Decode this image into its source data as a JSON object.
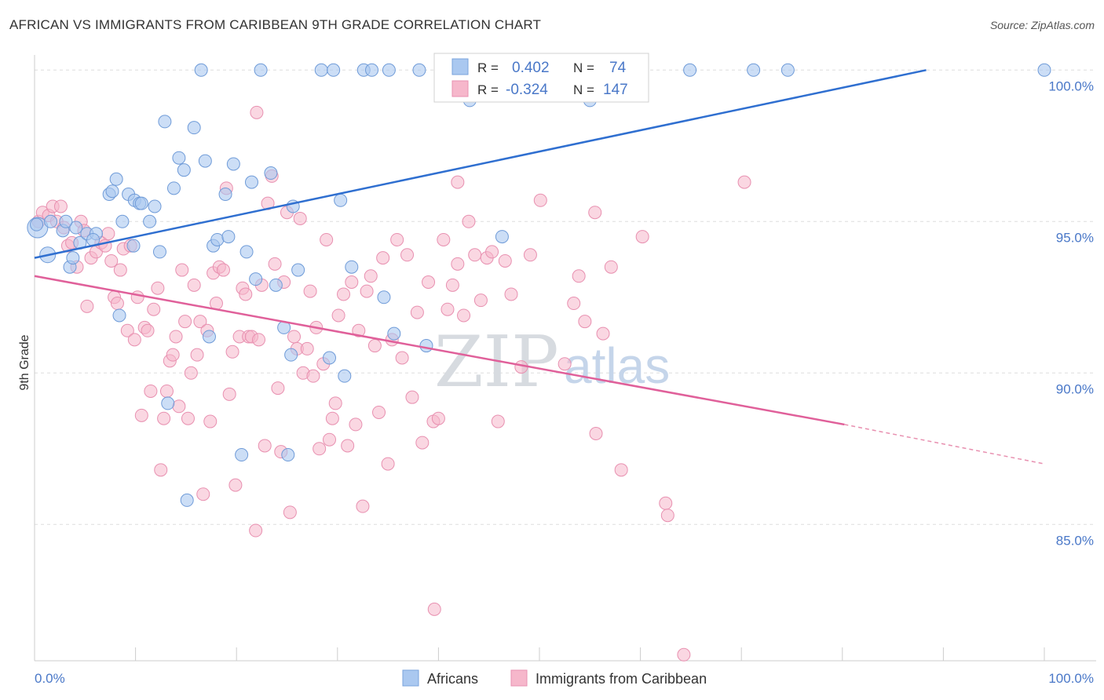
{
  "title": "AFRICAN VS IMMIGRANTS FROM CARIBBEAN 9TH GRADE CORRELATION CHART",
  "source": "Source: ZipAtlas.com",
  "watermark": {
    "zip": "ZIP",
    "atlas": "atlas"
  },
  "colors": {
    "africans": "#4a7fd4",
    "caribbean": "#e86a9c",
    "africans_fill": "#aac8f0",
    "caribbean_fill": "#f6b7cb",
    "axis_text": "#4a78c8"
  },
  "legend": {
    "rows": [
      {
        "r_label": "R =",
        "r_value": "0.402",
        "n_label": "N =",
        "n_value": "74"
      },
      {
        "r_label": "R =",
        "r_value": "-0.324",
        "n_label": "N =",
        "n_value": "147"
      }
    ]
  },
  "bottom_legend": [
    "Africans",
    "Immigrants from Caribbean"
  ],
  "chart_data": {
    "type": "scatter",
    "xlabel": "",
    "ylabel": "9th Grade",
    "xlim": [
      0,
      100
    ],
    "ylim": [
      80.5,
      100.5
    ],
    "x_tick_labels": [
      "0.0%",
      "100.0%"
    ],
    "y_ticks": [
      85,
      90,
      95,
      100
    ],
    "y_tick_labels": [
      "85.0%",
      "90.0%",
      "95.0%",
      "100.0%"
    ],
    "grid": true,
    "series": [
      {
        "name": "Africans",
        "color": "#4a7fd4",
        "trend": {
          "x": [
            0,
            88.3
          ],
          "y": [
            93.8,
            100
          ]
        },
        "points": [
          [
            0.3,
            94.8
          ],
          [
            1.3,
            93.9
          ],
          [
            1.6,
            95
          ],
          [
            2.8,
            94.7
          ],
          [
            3.5,
            93.5
          ],
          [
            3.8,
            93.8
          ],
          [
            4.1,
            94.8
          ],
          [
            4.5,
            94.3
          ],
          [
            5.2,
            94.6
          ],
          [
            6.1,
            94.6
          ],
          [
            7.4,
            95.9
          ],
          [
            7.7,
            96
          ],
          [
            8.1,
            96.4
          ],
          [
            8.4,
            91.9
          ],
          [
            8.7,
            95
          ],
          [
            9.3,
            95.9
          ],
          [
            9.8,
            94.2
          ],
          [
            9.9,
            95.7
          ],
          [
            10.4,
            95.6
          ],
          [
            10.6,
            95.6
          ],
          [
            11.4,
            95
          ],
          [
            11.9,
            95.5
          ],
          [
            12.4,
            94
          ],
          [
            12.9,
            98.3
          ],
          [
            13.2,
            89
          ],
          [
            13.8,
            96.1
          ],
          [
            14.3,
            97.1
          ],
          [
            14.8,
            96.7
          ],
          [
            15.1,
            85.8
          ],
          [
            15.8,
            98.1
          ],
          [
            16.5,
            100
          ],
          [
            16.9,
            97
          ],
          [
            17.3,
            91.2
          ],
          [
            17.7,
            94.2
          ],
          [
            18.1,
            94.4
          ],
          [
            18.9,
            95.9
          ],
          [
            19.2,
            94.5
          ],
          [
            19.7,
            96.9
          ],
          [
            20.5,
            87.3
          ],
          [
            21,
            94
          ],
          [
            21.5,
            96.3
          ],
          [
            21.9,
            93.1
          ],
          [
            22.4,
            100
          ],
          [
            23.4,
            96.6
          ],
          [
            23.9,
            92.9
          ],
          [
            24.7,
            91.5
          ],
          [
            25.1,
            87.3
          ],
          [
            25.4,
            90.6
          ],
          [
            25.6,
            95.5
          ],
          [
            26.1,
            93.4
          ],
          [
            28.4,
            100
          ],
          [
            29.6,
            100
          ],
          [
            29.2,
            90.5
          ],
          [
            30.3,
            95.7
          ],
          [
            31.4,
            93.5
          ],
          [
            32.6,
            100
          ],
          [
            33.4,
            100
          ],
          [
            34.6,
            92.5
          ],
          [
            35.1,
            100
          ],
          [
            35.6,
            91.3
          ],
          [
            38.1,
            100
          ],
          [
            38.8,
            90.9
          ],
          [
            41.3,
            100
          ],
          [
            43.1,
            99
          ],
          [
            55,
            99
          ],
          [
            64.9,
            100
          ],
          [
            71.2,
            100
          ],
          [
            74.6,
            100
          ],
          [
            100,
            100
          ],
          [
            0.2,
            94.9
          ],
          [
            3.1,
            95
          ],
          [
            5.8,
            94.4
          ],
          [
            30.7,
            89.9
          ],
          [
            46.3,
            94.5
          ]
        ]
      },
      {
        "name": "Immigrants from Caribbean",
        "color": "#e86a9c",
        "trend": {
          "x": [
            0,
            80.2
          ],
          "y": [
            93.2,
            88.3
          ]
        },
        "trend_dashed": {
          "x": [
            80.2,
            100
          ],
          "y": [
            88.3,
            87
          ]
        },
        "points": [
          [
            0.4,
            95
          ],
          [
            0.8,
            95.3
          ],
          [
            1.4,
            95.2
          ],
          [
            1.8,
            95.5
          ],
          [
            2.2,
            95
          ],
          [
            2.6,
            95.5
          ],
          [
            2.9,
            94.8
          ],
          [
            3.3,
            94.2
          ],
          [
            3.7,
            94.3
          ],
          [
            4.2,
            93.5
          ],
          [
            4.6,
            95
          ],
          [
            4.9,
            94.7
          ],
          [
            5.2,
            92.2
          ],
          [
            5.6,
            93.8
          ],
          [
            6.1,
            94
          ],
          [
            6.6,
            94.3
          ],
          [
            7,
            94.2
          ],
          [
            7.3,
            94.6
          ],
          [
            7.6,
            93.7
          ],
          [
            7.9,
            92.5
          ],
          [
            8.2,
            92.3
          ],
          [
            8.5,
            93.4
          ],
          [
            8.8,
            94.1
          ],
          [
            9.2,
            91.4
          ],
          [
            9.5,
            94.2
          ],
          [
            9.9,
            91.1
          ],
          [
            10.2,
            92.5
          ],
          [
            10.6,
            88.6
          ],
          [
            10.9,
            91.5
          ],
          [
            11.2,
            91.4
          ],
          [
            11.5,
            89.4
          ],
          [
            11.8,
            92.1
          ],
          [
            12.2,
            92.8
          ],
          [
            12.5,
            86.8
          ],
          [
            12.8,
            88.5
          ],
          [
            13.1,
            89.4
          ],
          [
            13.4,
            90.4
          ],
          [
            13.7,
            90.6
          ],
          [
            14,
            91.2
          ],
          [
            14.3,
            88.9
          ],
          [
            14.6,
            93.4
          ],
          [
            14.9,
            91.7
          ],
          [
            15.2,
            88.5
          ],
          [
            15.5,
            90
          ],
          [
            15.8,
            92.9
          ],
          [
            16.1,
            90.6
          ],
          [
            16.4,
            91.7
          ],
          [
            16.7,
            86
          ],
          [
            17.1,
            91.4
          ],
          [
            17.4,
            88.4
          ],
          [
            17.7,
            93.3
          ],
          [
            18,
            92.3
          ],
          [
            18.3,
            93.5
          ],
          [
            18.7,
            93.4
          ],
          [
            19,
            96.1
          ],
          [
            19.3,
            89.3
          ],
          [
            19.6,
            90.7
          ],
          [
            19.9,
            86.3
          ],
          [
            20.3,
            91.2
          ],
          [
            20.6,
            92.8
          ],
          [
            20.9,
            92.6
          ],
          [
            21.2,
            91.2
          ],
          [
            21.5,
            91.2
          ],
          [
            21.9,
            84.8
          ],
          [
            22.2,
            91.1
          ],
          [
            22.5,
            92.9
          ],
          [
            22.8,
            87.6
          ],
          [
            23.1,
            95.6
          ],
          [
            23.5,
            96.5
          ],
          [
            23.8,
            93.6
          ],
          [
            24.1,
            89.5
          ],
          [
            24.4,
            87.4
          ],
          [
            24.7,
            93
          ],
          [
            25,
            95.3
          ],
          [
            25.3,
            85.4
          ],
          [
            25.7,
            91.2
          ],
          [
            26,
            90.8
          ],
          [
            26.3,
            95.1
          ],
          [
            26.6,
            90
          ],
          [
            27,
            90.8
          ],
          [
            27.3,
            92.7
          ],
          [
            27.6,
            89.9
          ],
          [
            27.9,
            91.5
          ],
          [
            28.2,
            87.5
          ],
          [
            28.6,
            90.3
          ],
          [
            28.9,
            94.4
          ],
          [
            29.2,
            87.8
          ],
          [
            29.5,
            88.5
          ],
          [
            29.8,
            89
          ],
          [
            30.1,
            91.9
          ],
          [
            30.6,
            92.6
          ],
          [
            31,
            87.6
          ],
          [
            31.4,
            93
          ],
          [
            31.8,
            88.3
          ],
          [
            32.1,
            91.4
          ],
          [
            32.5,
            85.6
          ],
          [
            32.9,
            92.7
          ],
          [
            33.3,
            93.2
          ],
          [
            33.7,
            90.9
          ],
          [
            34.1,
            88.7
          ],
          [
            34.5,
            93.8
          ],
          [
            35,
            87
          ],
          [
            35.4,
            91.1
          ],
          [
            35.9,
            94.4
          ],
          [
            36.4,
            90.5
          ],
          [
            36.9,
            93.9
          ],
          [
            37.4,
            89.2
          ],
          [
            37.9,
            92
          ],
          [
            38.4,
            87.7
          ],
          [
            39,
            93
          ],
          [
            39.5,
            88.4
          ],
          [
            40,
            88.5
          ],
          [
            40.5,
            94.4
          ],
          [
            40.9,
            92.1
          ],
          [
            41.4,
            92.9
          ],
          [
            41.9,
            93.6
          ],
          [
            42.5,
            91.9
          ],
          [
            43,
            95
          ],
          [
            43.6,
            93.9
          ],
          [
            44.2,
            92.4
          ],
          [
            44.8,
            93.8
          ],
          [
            45.3,
            94
          ],
          [
            45.9,
            88.4
          ],
          [
            46.6,
            93.7
          ],
          [
            47.2,
            92.6
          ],
          [
            48.2,
            90.2
          ],
          [
            49.1,
            93.9
          ],
          [
            52.5,
            90.3
          ],
          [
            53.4,
            92.3
          ],
          [
            53.9,
            93.2
          ],
          [
            54.5,
            91.7
          ],
          [
            55.6,
            88
          ],
          [
            56.3,
            91.3
          ],
          [
            58.1,
            86.8
          ],
          [
            62.5,
            85.7
          ],
          [
            62.7,
            85.3
          ],
          [
            64.3,
            80.7
          ],
          [
            22,
            98.6
          ],
          [
            41.9,
            96.3
          ],
          [
            50.1,
            95.7
          ],
          [
            55.5,
            95.3
          ],
          [
            57.1,
            93.5
          ],
          [
            60.2,
            94.5
          ],
          [
            70.3,
            96.3
          ],
          [
            39.6,
            82.2
          ]
        ]
      }
    ]
  }
}
